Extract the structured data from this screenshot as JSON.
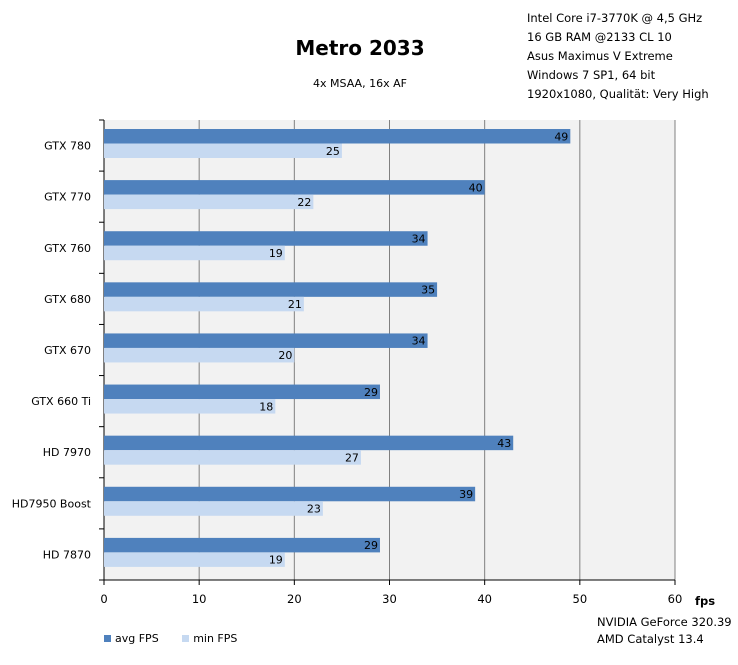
{
  "header": {
    "title": "Metro 2033",
    "subtitle": "4x MSAA,  16x AF"
  },
  "system_specs": [
    "Intel Core i7-3770K @ 4,5 GHz",
    "16 GB RAM  @2133 CL 10",
    "Asus Maximus V Extreme",
    "Windows 7 SP1, 64 bit",
    "1920x1080, Qualität: Very High"
  ],
  "drivers": [
    "NVIDIA GeForce 320.39",
    "AMD Catalyst 13.4"
  ],
  "colors": {
    "avg": "#4f81bd",
    "min": "#c6d9f1",
    "plot_bg": "#f2f2f2",
    "grid": "#808080"
  },
  "chart_data": {
    "type": "bar",
    "orientation": "horizontal",
    "categories": [
      "GTX 780",
      "GTX 770",
      "GTX 760",
      "GTX 680",
      "GTX 670",
      "GTX 660 Ti",
      "HD 7970",
      "HD7950 Boost",
      "HD 7870"
    ],
    "series": [
      {
        "name": "avg FPS",
        "values": [
          49,
          40,
          34,
          35,
          34,
          29,
          43,
          39,
          29
        ]
      },
      {
        "name": "min FPS",
        "values": [
          25,
          22,
          19,
          21,
          20,
          18,
          27,
          23,
          19
        ]
      }
    ],
    "xlabel": "fps",
    "xlim": [
      0,
      60
    ],
    "xticks": [
      "0",
      "10",
      "20",
      "30",
      "40",
      "50",
      "60"
    ],
    "grid": true,
    "legend_position": "bottom-left"
  }
}
